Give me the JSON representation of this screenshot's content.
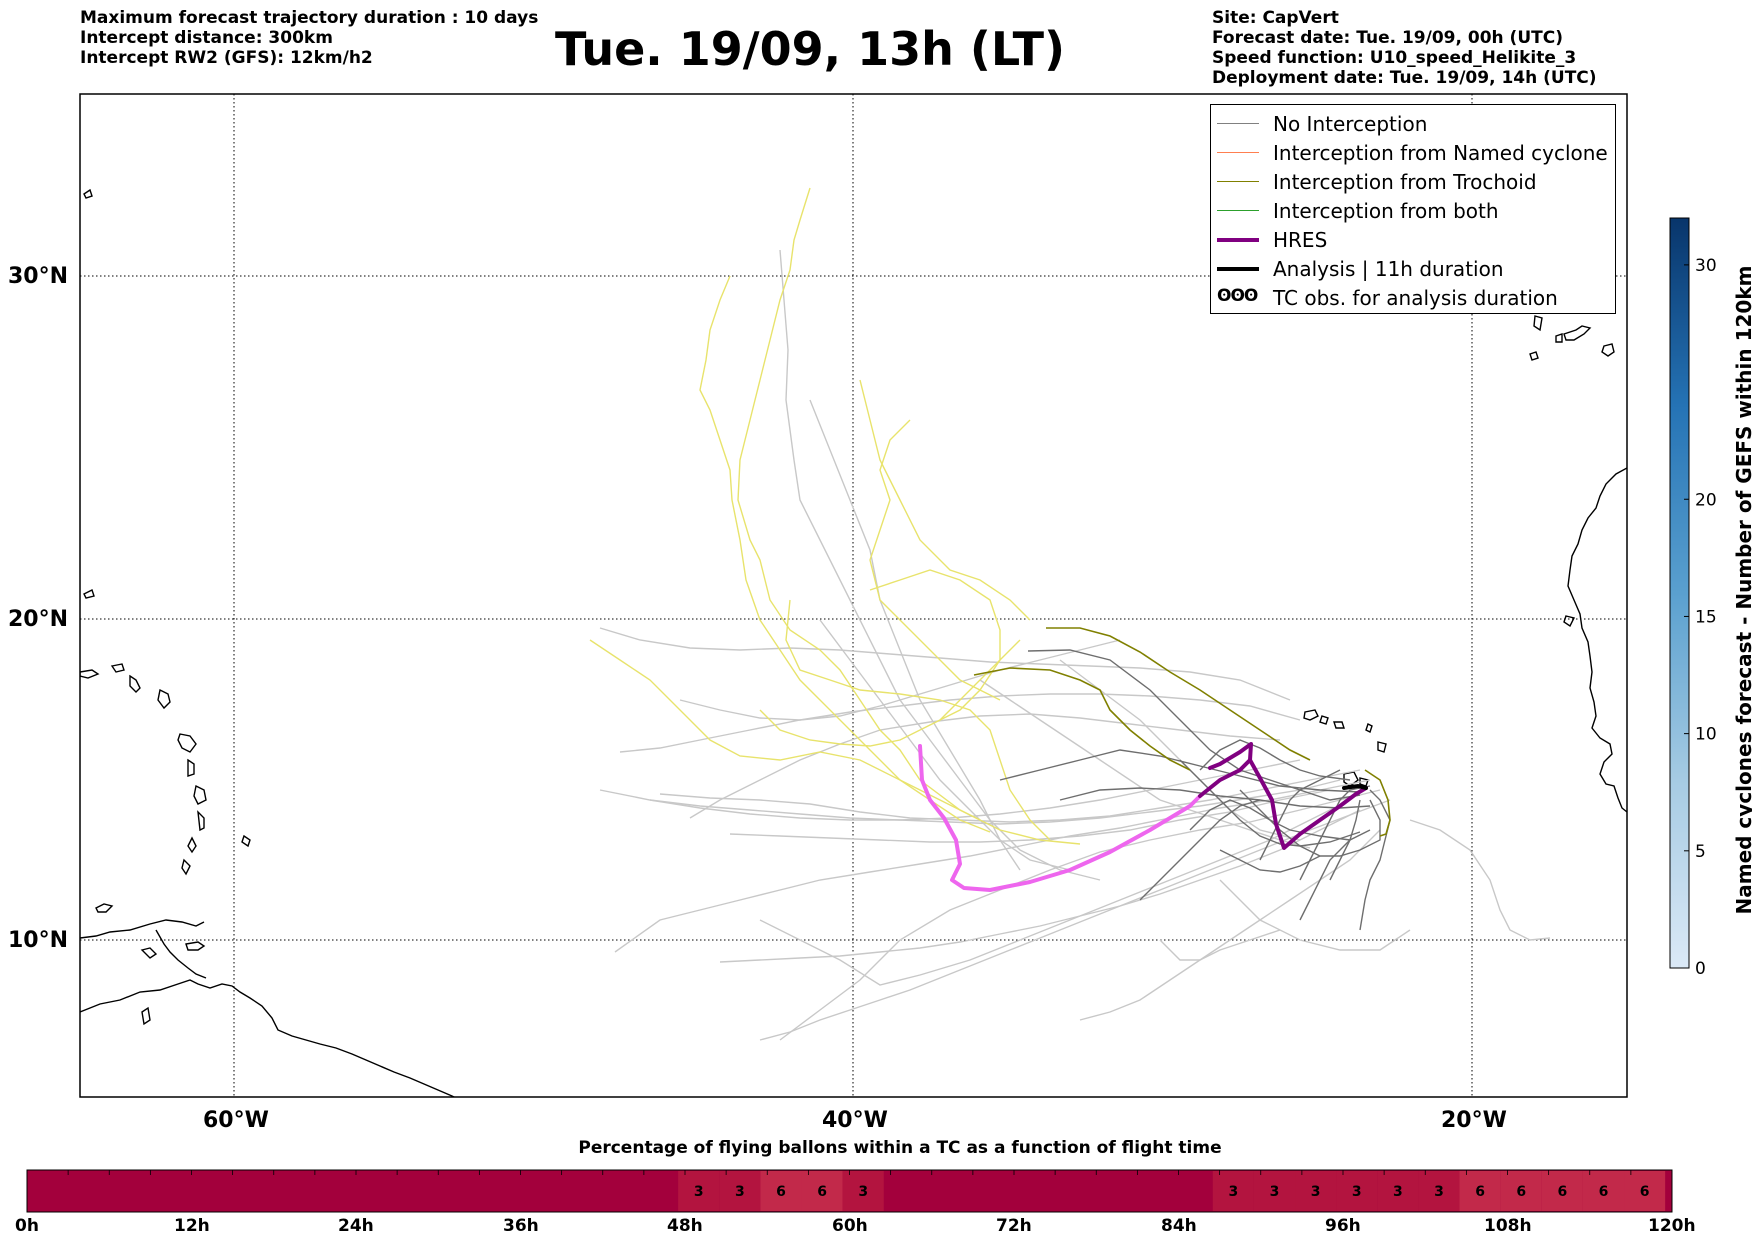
{
  "header_left": [
    "Maximum forecast trajectory duration : 10 days",
    "Intercept distance: 300km",
    "Intercept RW2 (GFS):  12km/h2"
  ],
  "title": "Tue. 19/09, 13h (LT)",
  "header_right": [
    "Site: CapVert",
    "Forecast date: Tue. 19/09, 00h (UTC)",
    "Speed function: U10_speed_Helikite_3",
    "Deployment date: Tue. 19/09, 14h (UTC)"
  ],
  "map": {
    "lat_labels": [
      "30°N",
      "20°N",
      "10°N"
    ],
    "lon_labels": [
      "60°W",
      "40°W",
      "20°W"
    ],
    "lat_range": [
      5.5,
      34.8
    ],
    "lon_range": [
      -65,
      -15
    ],
    "grid": "dotted"
  },
  "legend": {
    "placement": "top-right",
    "items": [
      {
        "label": "No Interception",
        "color": "#808080",
        "style": "line"
      },
      {
        "label": "Interception from Named cyclone",
        "color": "#ff7f50",
        "style": "line"
      },
      {
        "label": "Interception from Trochoid",
        "color": "#808000",
        "style": "line"
      },
      {
        "label": "Interception from both",
        "color": "#2ca02c",
        "style": "line"
      },
      {
        "label": "HRES",
        "color": "#800080",
        "style": "thick-line"
      },
      {
        "label": "Analysis | 11h duration",
        "color": "#000000",
        "style": "thick-line"
      },
      {
        "label": "TC obs. for analysis duration",
        "color": "#000000",
        "style": "tc-symbol",
        "symbol": "ʘʘʘ"
      }
    ]
  },
  "colorbar_right": {
    "label": "Named cyclones forecast - Number of GEFS within 120km",
    "ticks": [
      "0",
      "5",
      "10",
      "15",
      "20",
      "30"
    ],
    "tick_values": [
      0,
      5,
      10,
      15,
      20,
      30
    ],
    "range": [
      0,
      32
    ],
    "colormap": "Blues"
  },
  "bottom_bar": {
    "title": "Percentage of flying ballons within a TC as a function of flight time",
    "time_labels": [
      "0h",
      "12h",
      "24h",
      "36h",
      "48h",
      "60h",
      "72h",
      "84h",
      "96h",
      "108h",
      "120h"
    ],
    "base_color": "#a3003c",
    "cells_3_color": "#b3143f",
    "cells_6_color": "#c2294a",
    "annotated_cells": [
      {
        "hour": 49,
        "value": "3"
      },
      {
        "hour": 52,
        "value": "3"
      },
      {
        "hour": 55,
        "value": "6"
      },
      {
        "hour": 58,
        "value": "6"
      },
      {
        "hour": 61,
        "value": "3"
      },
      {
        "hour": 88,
        "value": "3"
      },
      {
        "hour": 91,
        "value": "3"
      },
      {
        "hour": 94,
        "value": "3"
      },
      {
        "hour": 97,
        "value": "3"
      },
      {
        "hour": 100,
        "value": "3"
      },
      {
        "hour": 103,
        "value": "3"
      },
      {
        "hour": 106,
        "value": "6"
      },
      {
        "hour": 109,
        "value": "6"
      },
      {
        "hour": 112,
        "value": "6"
      },
      {
        "hour": 115,
        "value": "6"
      },
      {
        "hour": 118,
        "value": "6"
      }
    ]
  },
  "colors": {
    "no_interception": "#c8c8c8",
    "no_interception_dark": "#6e6e6e",
    "trochoid": "#808000",
    "yellow_tracks": "#e8e36c",
    "hres": "#800080",
    "hres_light": "#ee66ee",
    "analysis": "#000000"
  }
}
